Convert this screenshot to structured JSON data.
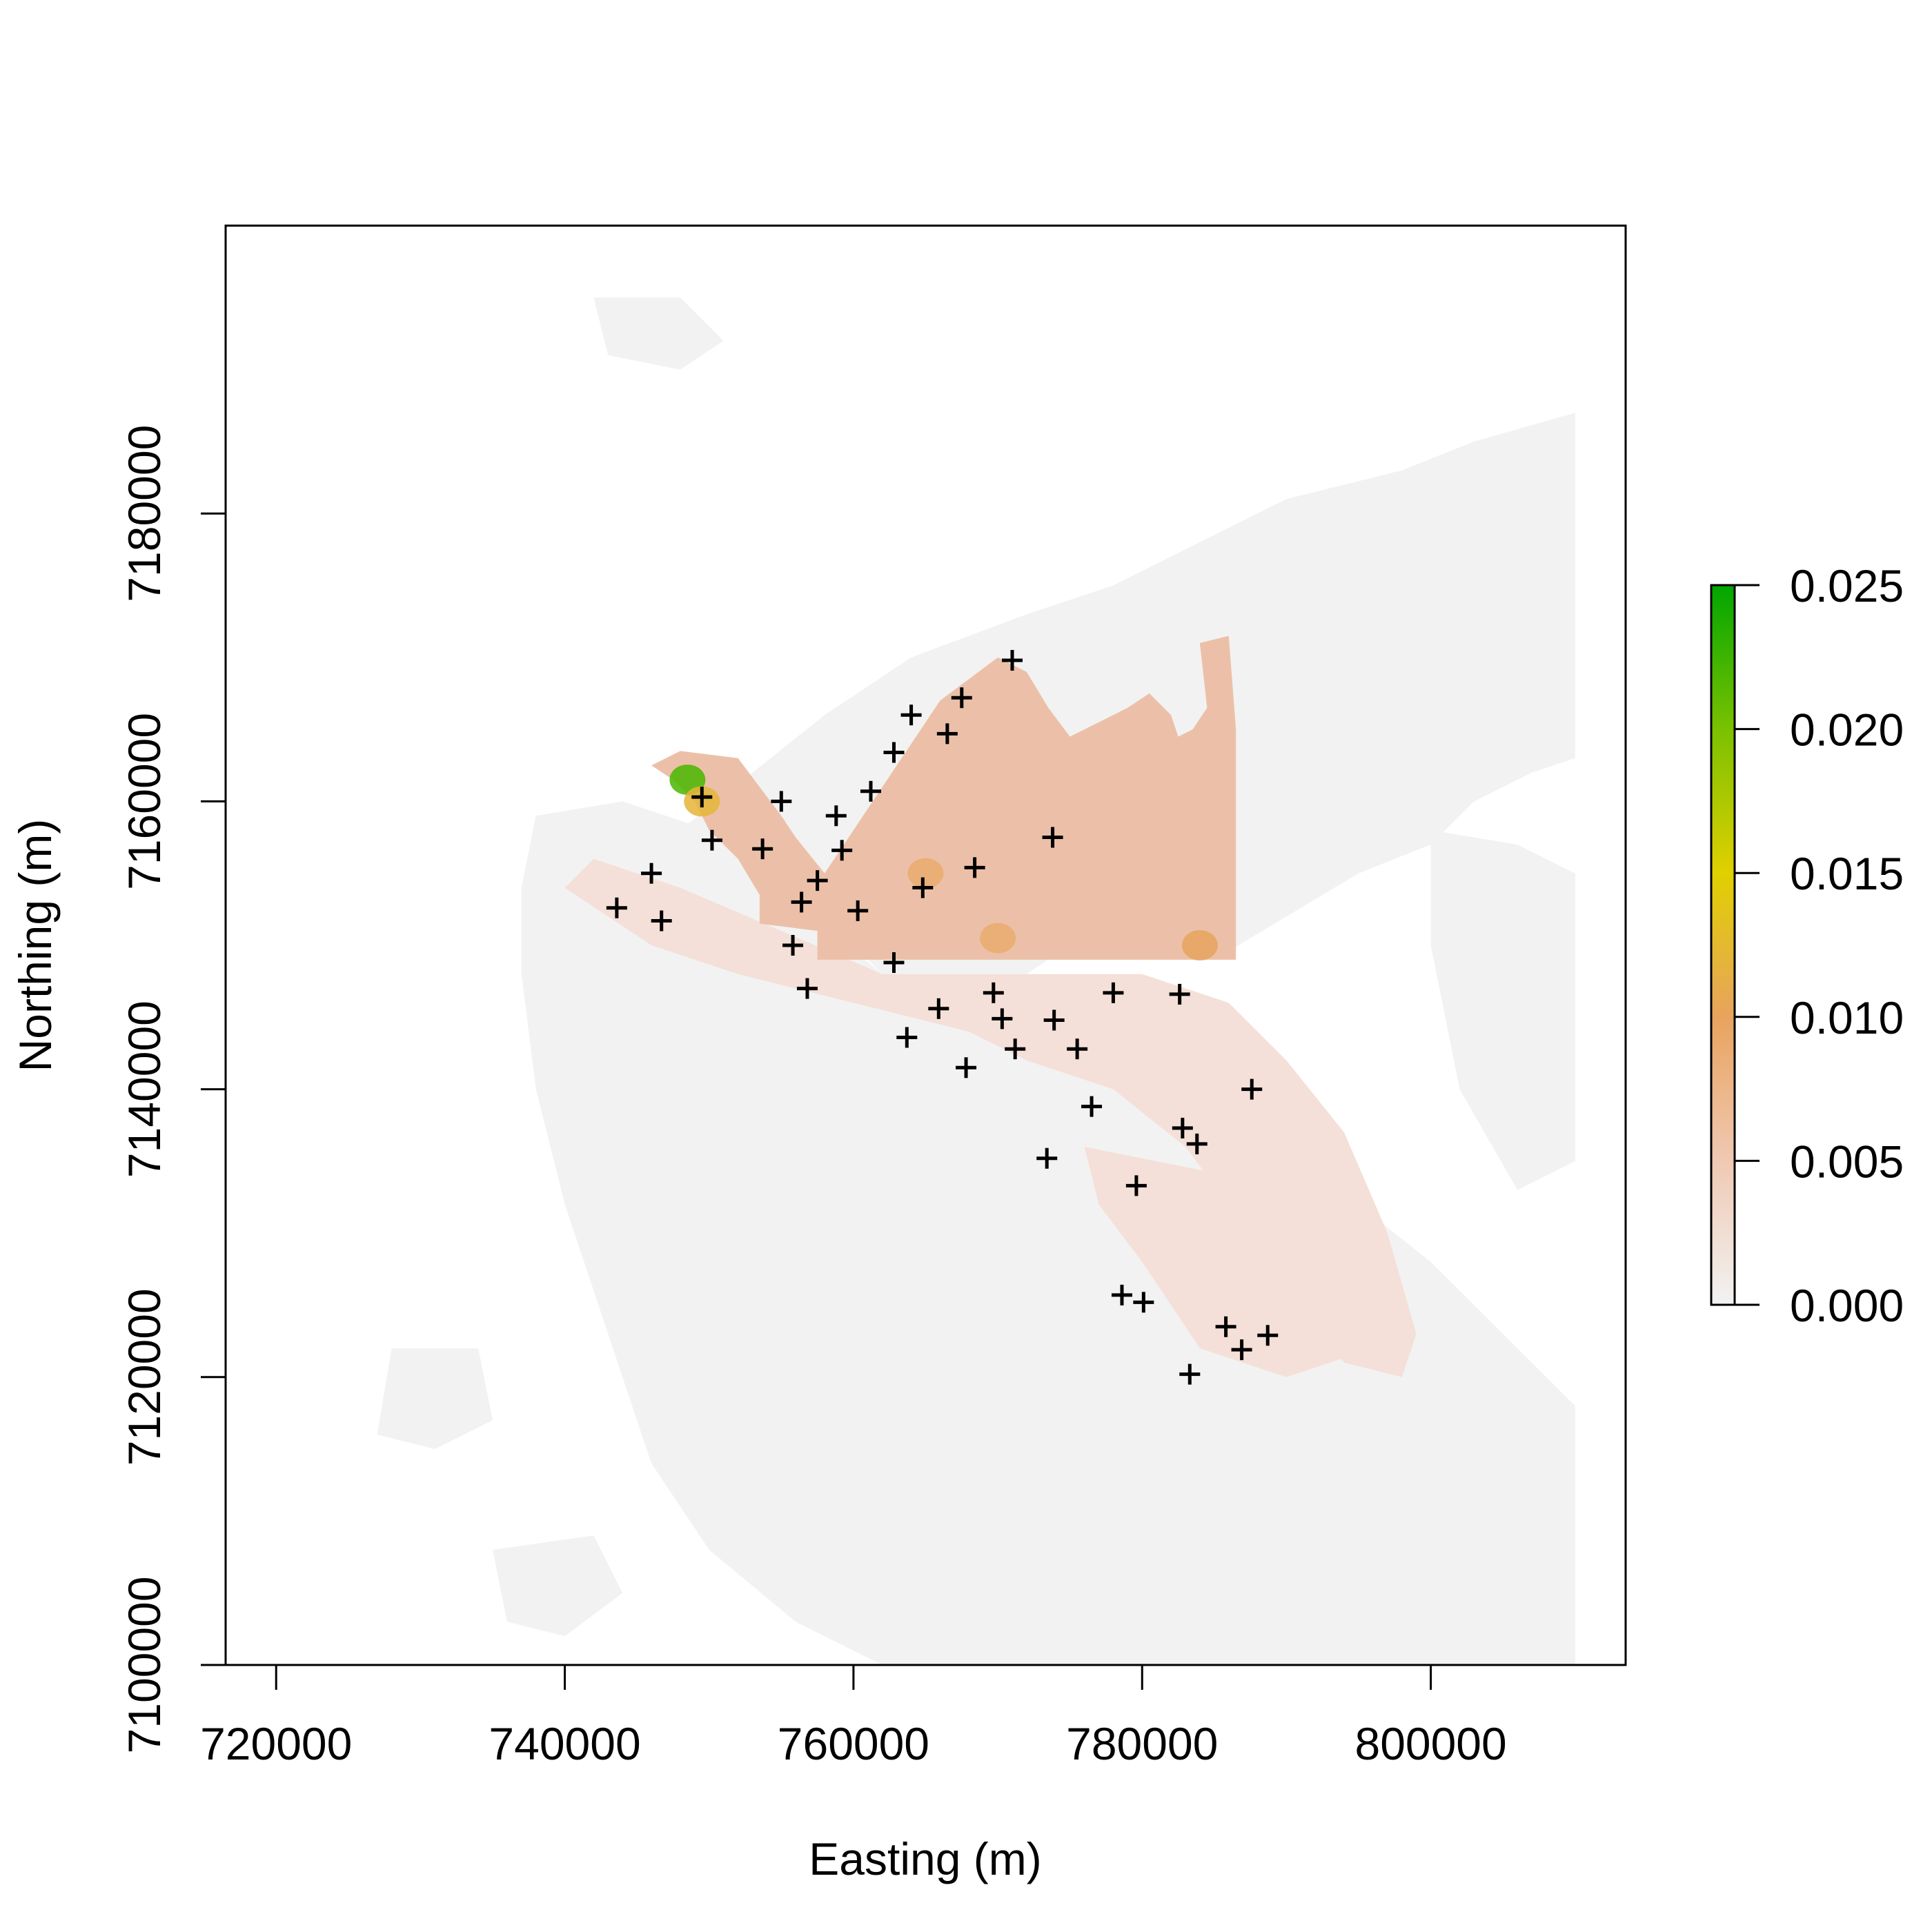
{
  "chart_data": {
    "type": "heatmap",
    "title": "",
    "xlabel": "Easting (m)",
    "ylabel": "Northing (m)",
    "xlim": [
      716500,
      813500
    ],
    "ylim": [
      7100000,
      7200000
    ],
    "x_ticks": [
      {
        "value": 720000,
        "label": "720000"
      },
      {
        "value": 740000,
        "label": "740000"
      },
      {
        "value": 760000,
        "label": "760000"
      },
      {
        "value": 780000,
        "label": "780000"
      },
      {
        "value": 800000,
        "label": "800000"
      }
    ],
    "y_ticks": [
      {
        "value": 7100000,
        "label": "7100000"
      },
      {
        "value": 7120000,
        "label": "7120000"
      },
      {
        "value": 7140000,
        "label": "7140000"
      },
      {
        "value": 7160000,
        "label": "7160000"
      },
      {
        "value": 7180000,
        "label": "7180000"
      }
    ],
    "legend": {
      "placement": "right",
      "range": [
        0.0,
        0.025
      ],
      "ticks": [
        {
          "value": 0.0,
          "label": "0.000"
        },
        {
          "value": 0.005,
          "label": "0.005"
        },
        {
          "value": 0.01,
          "label": "0.010"
        },
        {
          "value": 0.015,
          "label": "0.015"
        },
        {
          "value": 0.02,
          "label": "0.020"
        },
        {
          "value": 0.025,
          "label": "0.025"
        }
      ],
      "colors": [
        "#f2f2f2",
        "#f0c9b3",
        "#e8a35e",
        "#e0d000",
        "#7ac100",
        "#00a600"
      ]
    },
    "colors": {
      "background_land": "#f2f2f2",
      "low": "#f2d8cc",
      "mid": "#ebb79b",
      "high": "#e8a35e",
      "peak": "#7ac100"
    },
    "regions": {
      "land": [
        [
          [
            742000,
            7195000
          ],
          [
            748000,
            7195000
          ],
          [
            751000,
            7192000
          ],
          [
            748000,
            7190000
          ],
          [
            743000,
            7191000
          ]
        ],
        [
          [
            748000,
            7158000
          ],
          [
            755000,
            7153000
          ],
          [
            760000,
            7150000
          ],
          [
            762000,
            7148000
          ],
          [
            772000,
            7148000
          ],
          [
            775000,
            7150000
          ],
          [
            785000,
            7149000
          ],
          [
            790000,
            7152000
          ],
          [
            795000,
            7155000
          ],
          [
            800000,
            7157000
          ],
          [
            803000,
            7160000
          ],
          [
            807000,
            7162000
          ],
          [
            810000,
            7163000
          ],
          [
            810000,
            7187000
          ],
          [
            803000,
            7185000
          ],
          [
            798000,
            7183000
          ],
          [
            790000,
            7181000
          ],
          [
            784000,
            7178000
          ],
          [
            778000,
            7175000
          ],
          [
            772000,
            7173000
          ],
          [
            764000,
            7170000
          ],
          [
            758000,
            7166000
          ],
          [
            753000,
            7162000
          ]
        ],
        [
          [
            738000,
            7159000
          ],
          [
            744000,
            7160000
          ],
          [
            750000,
            7158000
          ],
          [
            756000,
            7153000
          ],
          [
            762000,
            7148000
          ],
          [
            768000,
            7145000
          ],
          [
            776000,
            7142000
          ],
          [
            784000,
            7138000
          ],
          [
            790000,
            7135000
          ],
          [
            795000,
            7132000
          ],
          [
            800000,
            7128000
          ],
          [
            805000,
            7123000
          ],
          [
            810000,
            7118000
          ],
          [
            810000,
            7100000
          ],
          [
            762000,
            7100000
          ],
          [
            756000,
            7103000
          ],
          [
            750000,
            7108000
          ],
          [
            746000,
            7114000
          ],
          [
            744000,
            7120000
          ],
          [
            742000,
            7126000
          ],
          [
            740000,
            7132000
          ],
          [
            738000,
            7140000
          ],
          [
            737000,
            7148000
          ],
          [
            737000,
            7154000
          ]
        ],
        [
          [
            728000,
            7122000
          ],
          [
            734000,
            7122000
          ],
          [
            735000,
            7117000
          ],
          [
            731000,
            7115000
          ],
          [
            727000,
            7116000
          ]
        ],
        [
          [
            735000,
            7108000
          ],
          [
            742000,
            7109000
          ],
          [
            744000,
            7105000
          ],
          [
            740000,
            7102000
          ],
          [
            736000,
            7103000
          ]
        ],
        [
          [
            800000,
            7158000
          ],
          [
            806000,
            7157000
          ],
          [
            810000,
            7155000
          ],
          [
            810000,
            7135000
          ],
          [
            806000,
            7133000
          ],
          [
            802000,
            7140000
          ],
          [
            800000,
            7150000
          ]
        ]
      ],
      "low": [
        [
          [
            740000,
            7154000
          ],
          [
            746000,
            7150000
          ],
          [
            752000,
            7148000
          ],
          [
            760000,
            7146000
          ],
          [
            768000,
            7144000
          ],
          [
            772000,
            7142000
          ],
          [
            778000,
            7140000
          ],
          [
            783000,
            7136000
          ],
          [
            786000,
            7132000
          ],
          [
            790000,
            7127000
          ],
          [
            794000,
            7121000
          ],
          [
            798000,
            7120000
          ],
          [
            799000,
            7123000
          ],
          [
            797000,
            7130000
          ],
          [
            794000,
            7137000
          ],
          [
            790000,
            7142000
          ],
          [
            786000,
            7146000
          ],
          [
            780000,
            7148000
          ],
          [
            772000,
            7148000
          ],
          [
            762000,
            7148000
          ],
          [
            755000,
            7151000
          ],
          [
            748000,
            7154000
          ],
          [
            742000,
            7156000
          ]
        ],
        [
          [
            776000,
            7136000
          ],
          [
            786000,
            7134000
          ],
          [
            792000,
            7128000
          ],
          [
            796000,
            7122000
          ],
          [
            790000,
            7120000
          ],
          [
            784000,
            7122000
          ],
          [
            780000,
            7128000
          ],
          [
            777000,
            7132000
          ]
        ]
      ],
      "study": [
        [
          [
            746000,
            7162500
          ],
          [
            748000,
            7163500
          ],
          [
            752000,
            7163000
          ],
          [
            753500,
            7161000
          ],
          [
            755000,
            7159000
          ],
          [
            756000,
            7157500
          ],
          [
            758000,
            7155000
          ],
          [
            760000,
            7158000
          ],
          [
            762000,
            7161000
          ],
          [
            764000,
            7164000
          ],
          [
            766000,
            7167000
          ],
          [
            768000,
            7168500
          ],
          [
            770000,
            7170000
          ],
          [
            772000,
            7169000
          ],
          [
            773500,
            7166500
          ],
          [
            775000,
            7164500
          ],
          [
            777000,
            7165500
          ],
          [
            779000,
            7166500
          ],
          [
            780500,
            7167500
          ],
          [
            782000,
            7166000
          ],
          [
            782500,
            7164500
          ],
          [
            783500,
            7165000
          ],
          [
            784500,
            7166500
          ],
          [
            784000,
            7171000
          ],
          [
            786000,
            7171500
          ],
          [
            786500,
            7165000
          ],
          [
            786500,
            7149000
          ],
          [
            770000,
            7149000
          ],
          [
            757500,
            7149000
          ],
          [
            757500,
            7151000
          ],
          [
            753500,
            7151500
          ],
          [
            753500,
            7153500
          ],
          [
            752000,
            7156000
          ],
          [
            750000,
            7158000
          ],
          [
            749000,
            7160000
          ],
          [
            747500,
            7161500
          ]
        ]
      ],
      "hotspots": [
        {
          "center": [
            748500,
            7161500
          ],
          "value": 0.022
        },
        {
          "center": [
            749500,
            7160000
          ],
          "value": 0.012
        },
        {
          "center": [
            765000,
            7155000
          ],
          "value": 0.009
        },
        {
          "center": [
            784000,
            7150000
          ],
          "value": 0.01
        },
        {
          "center": [
            770000,
            7150500
          ],
          "value": 0.009
        }
      ]
    },
    "points": [
      [
        771000,
        7169800
      ],
      [
        767500,
        7167200
      ],
      [
        764000,
        7166000
      ],
      [
        766500,
        7164700
      ],
      [
        762800,
        7163400
      ],
      [
        761200,
        7160700
      ],
      [
        755000,
        7160000
      ],
      [
        749500,
        7160300
      ],
      [
        758800,
        7159000
      ],
      [
        773800,
        7157500
      ],
      [
        750200,
        7157300
      ],
      [
        753700,
        7156700
      ],
      [
        759200,
        7156600
      ],
      [
        746000,
        7155000
      ],
      [
        768400,
        7155400
      ],
      [
        757500,
        7154500
      ],
      [
        764800,
        7154000
      ],
      [
        756400,
        7153000
      ],
      [
        743600,
        7152600
      ],
      [
        746700,
        7151700
      ],
      [
        760300,
        7152400
      ],
      [
        755800,
        7150000
      ],
      [
        762800,
        7148800
      ],
      [
        756800,
        7147000
      ],
      [
        769700,
        7146700
      ],
      [
        778000,
        7146700
      ],
      [
        782600,
        7146600
      ],
      [
        765900,
        7145600
      ],
      [
        770300,
        7144900
      ],
      [
        773900,
        7144800
      ],
      [
        763700,
        7143600
      ],
      [
        771200,
        7142800
      ],
      [
        775500,
        7142800
      ],
      [
        767800,
        7141500
      ],
      [
        787600,
        7140000
      ],
      [
        776500,
        7138800
      ],
      [
        782800,
        7137300
      ],
      [
        783800,
        7136200
      ],
      [
        773400,
        7135200
      ],
      [
        779600,
        7133300
      ],
      [
        778600,
        7125700
      ],
      [
        780100,
        7125200
      ],
      [
        785800,
        7123500
      ],
      [
        788700,
        7122900
      ],
      [
        786900,
        7121900
      ],
      [
        783300,
        7120200
      ]
    ]
  }
}
